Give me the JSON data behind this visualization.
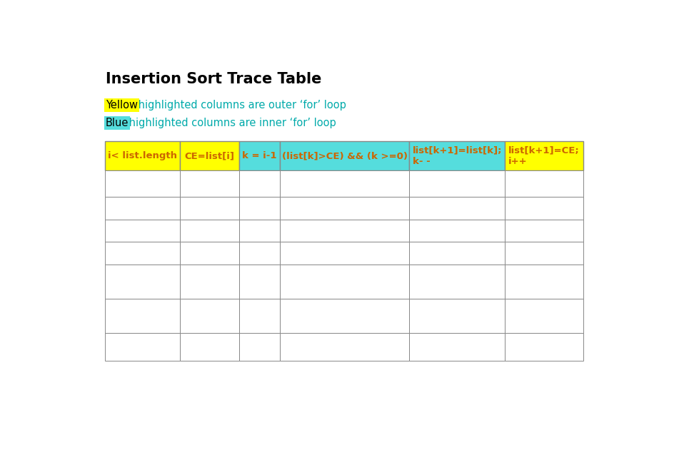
{
  "title": "Insertion Sort Trace Table",
  "title_fontsize": 15,
  "title_fontweight": "bold",
  "legend_yellow_word": "Yellow",
  "legend_blue_word": "Blue",
  "legend_rest_color": "#00AAAA",
  "legend_fontsize": 10.5,
  "col_headers": [
    "i< list.length",
    "CE=list[i]",
    "k = i-1",
    "(list[k]>CE) && (k >=0)",
    "list[k+1]=list[k];\nk- -",
    "list[k+1]=CE;\ni++"
  ],
  "col_colors": [
    "#FFFF00",
    "#FFFF00",
    "#55DDDD",
    "#55DDDD",
    "#55DDDD",
    "#FFFF00"
  ],
  "header_text_color": "#CC6600",
  "header_fontsize": 9.5,
  "header_fontweight": "bold",
  "table_border_color": "#888888",
  "background_color": "#FFFFFF",
  "fig_width": 9.58,
  "fig_height": 6.55
}
